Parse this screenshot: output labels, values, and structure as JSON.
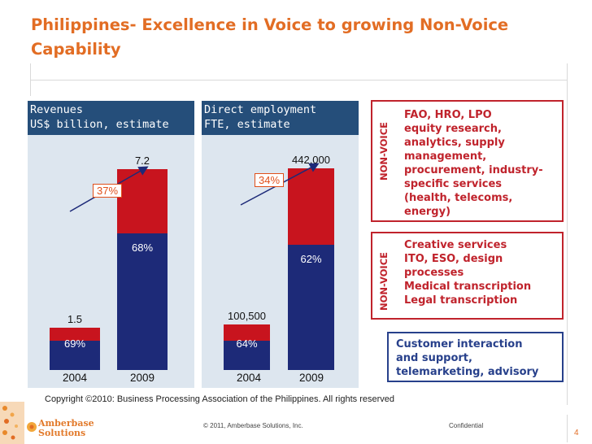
{
  "title": "Philippines- Excellence in Voice to growing Non-Voice Capability",
  "colors": {
    "title": "#e26d24",
    "panel_header": "#254e7a",
    "panel_bg": "#dde6ef",
    "bar_bottom": "#1d2a78",
    "bar_top": "#c8141e",
    "accent": "#e04f1a"
  },
  "chart_data": [
    {
      "type": "bar",
      "stacked": true,
      "title": "Revenues",
      "subtitle": "US$ billion, estimate",
      "categories": [
        "2004",
        "2009"
      ],
      "totals": [
        1.5,
        7.2
      ],
      "total_labels": [
        "1.5",
        "7.2"
      ],
      "series": [
        {
          "share": [
            0.69,
            0.68
          ],
          "share_labels": [
            "69%",
            "68%"
          ],
          "color": "#1d2a78"
        },
        {
          "share": [
            0.31,
            0.32
          ],
          "color": "#c8141e"
        }
      ],
      "growth_label": "37%",
      "ylim": [
        0,
        8
      ]
    },
    {
      "type": "bar",
      "stacked": true,
      "title": "Direct employment",
      "subtitle": "FTE, estimate",
      "categories": [
        "2004",
        "2009"
      ],
      "totals": [
        100500,
        442000
      ],
      "total_labels": [
        "100,500",
        "442,000"
      ],
      "series": [
        {
          "share": [
            0.64,
            0.62
          ],
          "share_labels": [
            "64%",
            "62%"
          ],
          "color": "#1d2a78"
        },
        {
          "share": [
            0.36,
            0.38
          ],
          "color": "#c8141e"
        }
      ],
      "growth_label": "34%",
      "ylim": [
        0,
        490000
      ]
    }
  ],
  "boxes": {
    "nonvoice_label": "NON-VOICE",
    "box1_lines": [
      "FAO, HRO, LPO",
      "equity research,",
      "analytics, supply",
      "management,",
      "procurement, industry-",
      "specific services",
      "(health, telecoms,",
      "energy)"
    ],
    "box2_lines": [
      "Creative services",
      "ITO, ESO, design",
      "processes",
      "Medical transcription",
      "Legal transcription"
    ],
    "box3_lines": [
      "Customer interaction",
      "and support,",
      "telemarketing, advisory"
    ]
  },
  "copyright": "Copyright ©2010: Business Processing Association of the Philippines. All rights reserved",
  "footer": {
    "company_line1": "Amberbase",
    "company_line2": "Solutions",
    "copyright": "© 2011, Amberbase Solutions, Inc.",
    "confidential": "Confidential",
    "page_number": "4"
  }
}
